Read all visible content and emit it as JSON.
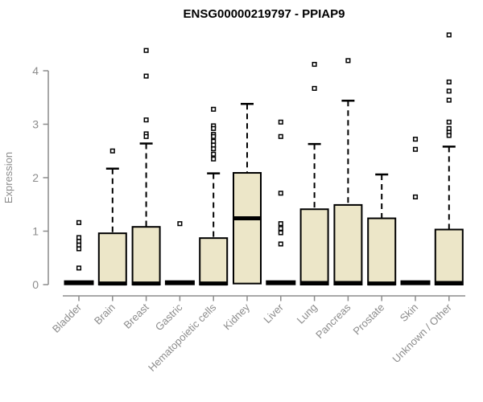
{
  "chart_data": {
    "type": "boxplot",
    "title": "ENSG00000219797 - PPIAP9",
    "xlabel": "",
    "ylabel": "Expression",
    "ylim": [
      0,
      4.75
    ],
    "yticks": [
      0,
      1,
      2,
      3,
      4
    ],
    "grid": false,
    "legend": null,
    "categories": [
      "Bladder",
      "Brain",
      "Breast",
      "Gastric",
      "Hematopoietic cells",
      "Kidney",
      "Liver",
      "Lung",
      "Pancreas",
      "Prostate",
      "Skin",
      "Unknown / Other"
    ],
    "series": [
      {
        "category": "Bladder",
        "q1": 0,
        "median": 0.02,
        "q3": 0.04,
        "whisker_low": 0,
        "whisker_high": 0.04,
        "outliers": [
          1.16,
          0.88,
          0.81,
          0.74,
          0.67,
          0.31
        ]
      },
      {
        "category": "Brain",
        "q1": 0,
        "median": 0.02,
        "q3": 0.96,
        "whisker_low": 0,
        "whisker_high": 2.17,
        "outliers": [
          2.5
        ]
      },
      {
        "category": "Breast",
        "q1": 0,
        "median": 0.02,
        "q3": 1.08,
        "whisker_low": 0,
        "whisker_high": 2.64,
        "outliers": [
          4.38,
          3.9,
          3.08,
          2.82,
          2.77
        ]
      },
      {
        "category": "Gastric",
        "q1": 0,
        "median": 0.02,
        "q3": 0.04,
        "whisker_low": 0,
        "whisker_high": 0.04,
        "outliers": [
          1.14
        ]
      },
      {
        "category": "Hematopoietic cells",
        "q1": 0,
        "median": 0.02,
        "q3": 0.87,
        "whisker_low": 0,
        "whisker_high": 2.08,
        "outliers": [
          3.28,
          2.97,
          2.92,
          2.81,
          2.77,
          2.68,
          2.61,
          2.54,
          2.44,
          2.35
        ]
      },
      {
        "category": "Kidney",
        "q1": 0.02,
        "median": 1.24,
        "q3": 2.09,
        "whisker_low": 0.02,
        "whisker_high": 3.38,
        "outliers": []
      },
      {
        "category": "Liver",
        "q1": 0,
        "median": 0.02,
        "q3": 0.04,
        "whisker_low": 0,
        "whisker_high": 0.04,
        "outliers": [
          3.04,
          2.77,
          1.71,
          1.14,
          1.05,
          0.97,
          0.76
        ]
      },
      {
        "category": "Lung",
        "q1": 0,
        "median": 0.03,
        "q3": 1.41,
        "whisker_low": 0,
        "whisker_high": 2.63,
        "outliers": [
          4.12,
          3.67
        ]
      },
      {
        "category": "Pancreas",
        "q1": 0,
        "median": 0.03,
        "q3": 1.49,
        "whisker_low": 0,
        "whisker_high": 3.44,
        "outliers": [
          4.19
        ]
      },
      {
        "category": "Prostate",
        "q1": 0,
        "median": 0.02,
        "q3": 1.24,
        "whisker_low": 0,
        "whisker_high": 2.06,
        "outliers": []
      },
      {
        "category": "Skin",
        "q1": 0,
        "median": 0.02,
        "q3": 0.04,
        "whisker_low": 0,
        "whisker_high": 0.04,
        "outliers": [
          2.72,
          2.53,
          1.64
        ]
      },
      {
        "category": "Unknown / Other",
        "q1": 0,
        "median": 0.03,
        "q3": 1.03,
        "whisker_low": 0,
        "whisker_high": 2.58,
        "outliers": [
          4.67,
          3.79,
          3.62,
          3.45,
          3.04,
          2.92,
          2.85,
          2.79
        ]
      }
    ]
  },
  "colors": {
    "background": "#FFFFFF",
    "box_fill": "#ECE6C8",
    "box_stroke": "#000000",
    "median": "#000000",
    "whisker": "#000000",
    "outlier_fill": "#FFFFFF",
    "outlier_stroke": "#000000",
    "axis": "#8C8C8C",
    "tick_label": "#8C8C8C",
    "title": "#000000"
  }
}
